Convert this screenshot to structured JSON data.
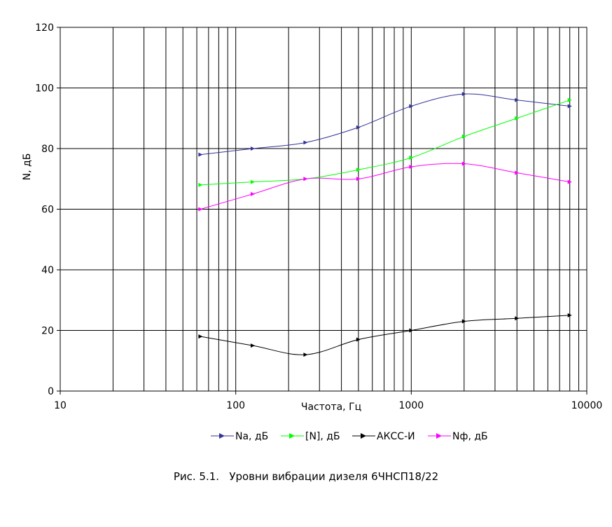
{
  "chart_data": {
    "type": "line",
    "xscale": "log",
    "xlim": [
      10,
      10000
    ],
    "ylim": [
      0,
      120
    ],
    "grid": true,
    "legend_position": "bottom",
    "xlabel": "Частота, Гц",
    "ylabel": "N, дБ",
    "x_tick_labels": [
      "10",
      "100",
      "1000",
      "10000"
    ],
    "y_tick_labels": [
      "0",
      "20",
      "40",
      "60",
      "80",
      "100",
      "120"
    ],
    "x": [
      63,
      125,
      250,
      500,
      1000,
      2000,
      4000,
      8000
    ],
    "series": [
      {
        "name": "Na, дБ",
        "color": "#333399",
        "values": [
          78,
          80,
          82,
          87,
          94,
          98,
          96,
          94
        ]
      },
      {
        "name": "[N], дБ",
        "color": "#00ff00",
        "values": [
          68,
          69,
          70,
          73,
          77,
          84,
          90,
          96
        ]
      },
      {
        "name": "АКСС-И",
        "color": "#000000",
        "values": [
          18,
          15,
          12,
          17,
          20,
          23,
          24,
          25
        ]
      },
      {
        "name": "Nф, дБ",
        "color": "#ff00ff",
        "values": [
          60,
          65,
          70,
          70,
          74,
          75,
          72,
          69
        ]
      }
    ]
  },
  "caption": "Рис. 5.1.   Уровни вибрации дизеля 6ЧНСП18/22"
}
